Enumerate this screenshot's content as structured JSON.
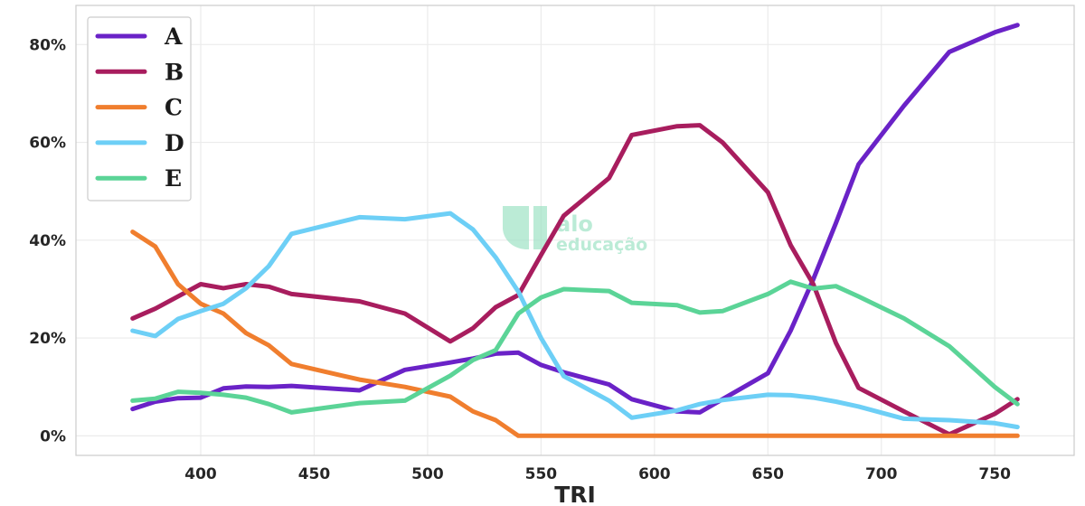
{
  "chart_data": {
    "type": "line",
    "xlabel": "TRI",
    "ylabel": "",
    "xlim": [
      345,
      785
    ],
    "ylim": [
      -4,
      88
    ],
    "x_ticks": [
      400,
      450,
      500,
      550,
      600,
      650,
      700,
      750
    ],
    "y_ticks": [
      0,
      20,
      40,
      60,
      80
    ],
    "y_tick_labels": [
      "0%",
      "20%",
      "40%",
      "60%",
      "80%"
    ],
    "grid": true,
    "legend_position": "top-left",
    "x": [
      370,
      380,
      390,
      400,
      410,
      420,
      430,
      440,
      470,
      490,
      510,
      520,
      530,
      540,
      550,
      560,
      580,
      590,
      610,
      620,
      630,
      650,
      660,
      670,
      680,
      690,
      710,
      730,
      750,
      760
    ],
    "series": [
      {
        "name": "A",
        "color": "#6a22c7",
        "values": [
          5.5,
          7,
          7.7,
          7.8,
          9.7,
          10.1,
          10,
          10.2,
          9.3,
          13.5,
          15,
          15.8,
          16.8,
          17,
          14.5,
          13,
          10.5,
          7.5,
          5,
          4.8,
          7.5,
          12.8,
          21.5,
          32,
          43.5,
          55.5,
          67.5,
          78.5,
          82.5,
          84
        ]
      },
      {
        "name": "B",
        "color": "#a81d5e",
        "values": [
          24,
          26,
          28.5,
          31,
          30.2,
          31,
          30.5,
          29,
          27.5,
          25,
          19.3,
          22,
          26.3,
          28.8,
          37,
          45,
          52.7,
          61.5,
          63.3,
          63.5,
          60,
          49.8,
          39,
          31,
          19,
          9.8,
          5,
          0.3,
          4.5,
          7.5
        ]
      },
      {
        "name": "C",
        "color": "#f07e2e",
        "values": [
          41.7,
          38.7,
          31,
          27,
          25,
          21,
          18.5,
          14.7,
          11.5,
          10,
          8,
          5,
          3.2,
          0,
          0,
          0,
          0,
          0,
          0,
          0,
          0,
          0,
          0,
          0,
          0,
          0,
          0,
          0,
          0,
          0
        ]
      },
      {
        "name": "D",
        "color": "#6dcff6",
        "values": [
          21.5,
          20.4,
          23.9,
          25.5,
          27,
          30.2,
          34.7,
          41.3,
          44.7,
          44.3,
          45.5,
          42.2,
          36.5,
          29.5,
          20,
          12.2,
          7.2,
          3.7,
          5.2,
          6.5,
          7.3,
          8.4,
          8.3,
          7.8,
          7,
          6,
          3.5,
          3.2,
          2.6,
          1.8
        ]
      },
      {
        "name": "E",
        "color": "#5bd497",
        "values": [
          7.2,
          7.6,
          9,
          8.8,
          8.4,
          7.8,
          6.5,
          4.8,
          6.7,
          7.2,
          12.3,
          15.5,
          17.5,
          25,
          28.3,
          30,
          29.6,
          27.2,
          26.7,
          25.2,
          25.5,
          29,
          31.5,
          30.1,
          30.6,
          28.5,
          24,
          18.3,
          10,
          6.5
        ]
      }
    ]
  },
  "watermark": {
    "line1": "alo",
    "line2": "educação",
    "color": "#9fe3c6"
  }
}
